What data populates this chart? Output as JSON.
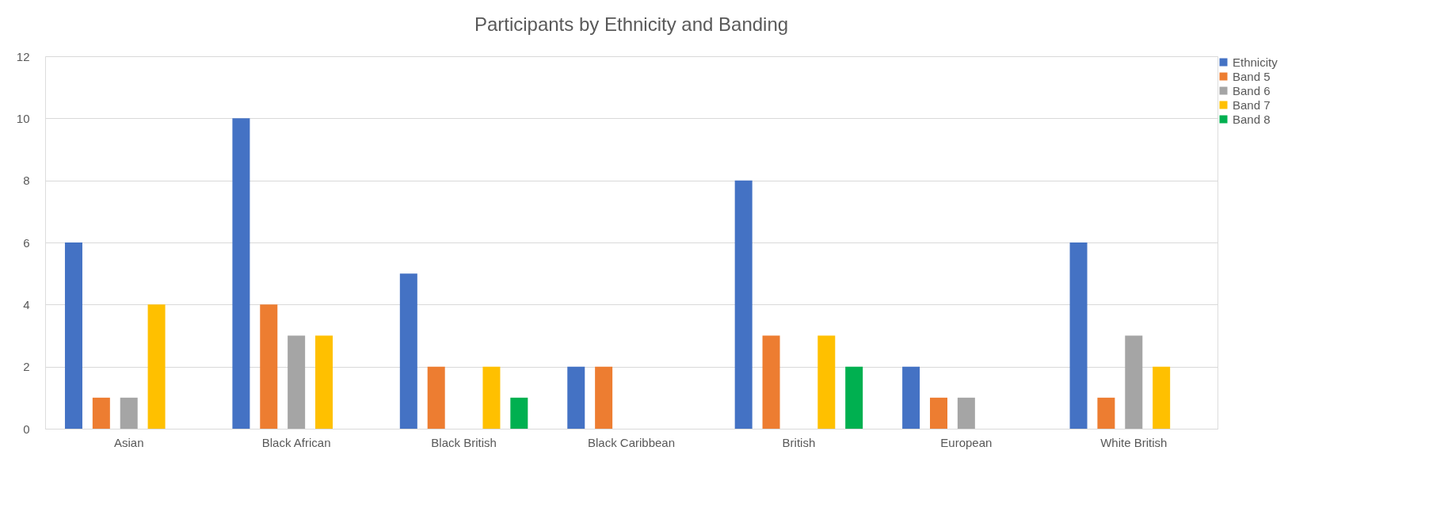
{
  "chart_data": {
    "type": "bar",
    "title": "Participants by Ethnicity and Banding",
    "categories": [
      "Asian",
      "Black African",
      "Black British",
      "Black Caribbean",
      "British",
      "European",
      "White British"
    ],
    "series": [
      {
        "name": "Ethnicity",
        "color": "#4472c4",
        "values": [
          6,
          10,
          5,
          2,
          8,
          2,
          6
        ]
      },
      {
        "name": "Band 5",
        "color": "#ed7d31",
        "values": [
          1,
          4,
          2,
          2,
          3,
          1,
          1
        ]
      },
      {
        "name": "Band 6",
        "color": "#a5a5a5",
        "values": [
          1,
          3,
          null,
          null,
          null,
          1,
          3
        ]
      },
      {
        "name": "Band 7",
        "color": "#ffc000",
        "values": [
          4,
          3,
          2,
          null,
          3,
          null,
          2
        ]
      },
      {
        "name": "Band 8",
        "color": "#00b050",
        "values": [
          null,
          null,
          1,
          null,
          2,
          null,
          null
        ]
      }
    ],
    "ylim": [
      0,
      12
    ],
    "yticks": [
      0,
      2,
      4,
      6,
      8,
      10,
      12
    ],
    "grid": "y",
    "legend": "right"
  }
}
